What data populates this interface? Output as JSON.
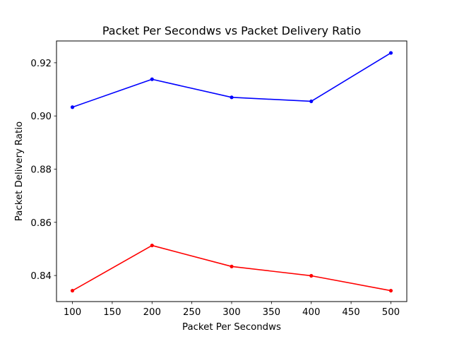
{
  "chart_data": {
    "type": "line",
    "title": "Packet Per Secondws vs Packet Delivery Ratio",
    "xlabel": "Packet Per Secondws",
    "ylabel": "Packet Delivery Ratio",
    "x": [
      100,
      200,
      300,
      400,
      500
    ],
    "xlim": [
      80,
      520
    ],
    "ylim": [
      0.8302,
      0.9282
    ],
    "xticks": [
      100,
      150,
      200,
      250,
      300,
      350,
      400,
      450,
      500
    ],
    "yticks": [
      0.84,
      0.86,
      0.88,
      0.9,
      0.92
    ],
    "ytick_labels": [
      "0.84",
      "0.86",
      "0.88",
      "0.90",
      "0.92"
    ],
    "grid": false,
    "series": [
      {
        "values": [
          0.9033,
          0.9138,
          0.907,
          0.9055,
          0.9237
        ],
        "color": "#0000ff",
        "marker": "point"
      },
      {
        "values": [
          0.8343,
          0.8513,
          0.8434,
          0.8399,
          0.8343
        ],
        "color": "#ff0000",
        "marker": "point"
      }
    ]
  }
}
